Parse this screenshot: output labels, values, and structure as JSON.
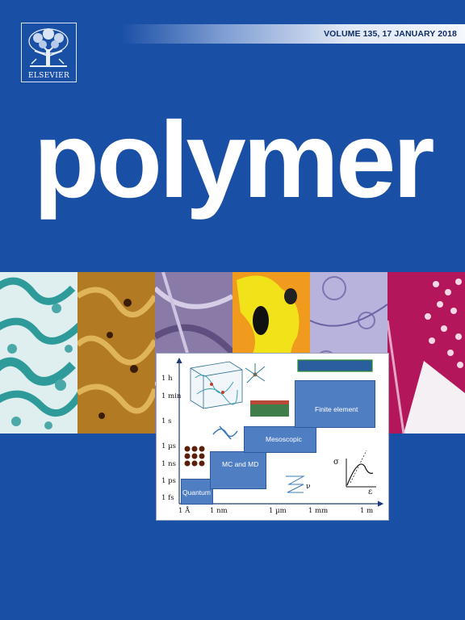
{
  "publisher": {
    "name": "ELSEVIER",
    "logo_icon": "elsevier-tree-icon"
  },
  "header": {
    "volume_text": "VOLUME 135, 17 JANUARY 2018"
  },
  "journal": {
    "title": "polymer"
  },
  "diagram": {
    "y_labels": [
      "1 h",
      "1 min",
      "1 s",
      "1 µs",
      "1 ns",
      "1 ps",
      "1 fs"
    ],
    "x_labels": [
      "1 Å",
      "1 nm",
      "1 µm",
      "1 mm",
      "1 m"
    ],
    "blocks": {
      "quantum": "Quantum",
      "mcmd": "MC and MD",
      "meso": "Mesoscopic",
      "fe": "Finite element"
    },
    "stress_symbol": "σ",
    "strain_symbol": "ε",
    "nu_symbol": "ν"
  },
  "colors": {
    "background": "#1a4fa6",
    "block": "#4f7ec3"
  }
}
